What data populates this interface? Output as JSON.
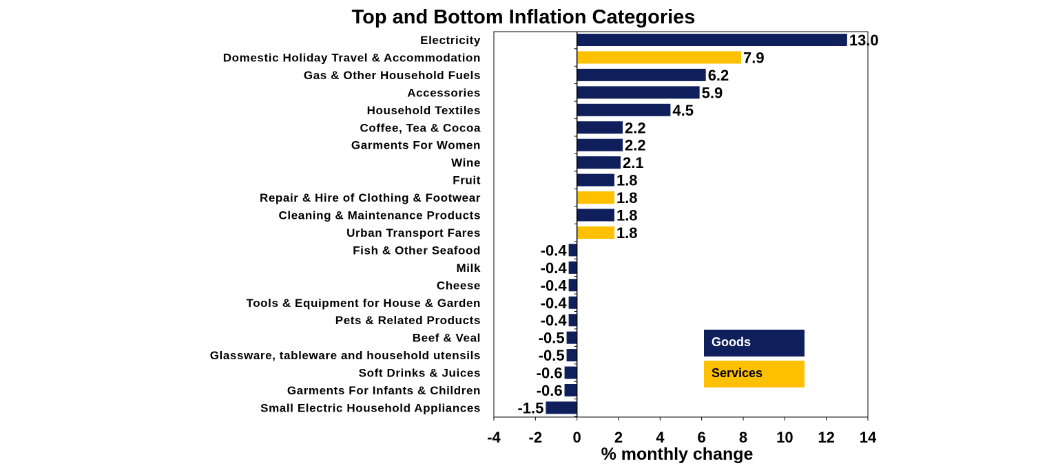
{
  "chart_data": {
    "type": "bar",
    "orientation": "horizontal",
    "title": "Top and Bottom Inflation Categories",
    "xlabel": "% monthly change",
    "ylabel": "",
    "xlim": [
      -4,
      14
    ],
    "xticks": [
      -4,
      -2,
      0,
      2,
      4,
      6,
      8,
      10,
      12,
      14
    ],
    "grid": false,
    "legend_position": "bottom-right",
    "series_colors": {
      "Goods": "#0f1f5c",
      "Services": "#ffc000"
    },
    "legend": [
      {
        "name": "Goods",
        "color": "#0f1f5c",
        "text_color": "#ffffff"
      },
      {
        "name": "Services",
        "color": "#ffc000",
        "text_color": "#000000"
      }
    ],
    "bars": [
      {
        "category": "Electricity",
        "value": 13.0,
        "label": "13.0",
        "series": "Goods"
      },
      {
        "category": "Domestic Holiday Travel & Accommodation",
        "value": 7.9,
        "label": "7.9",
        "series": "Services"
      },
      {
        "category": "Gas & Other Household Fuels",
        "value": 6.2,
        "label": "6.2",
        "series": "Goods"
      },
      {
        "category": "Accessories",
        "value": 5.9,
        "label": "5.9",
        "series": "Goods"
      },
      {
        "category": "Household Textiles",
        "value": 4.5,
        "label": "4.5",
        "series": "Goods"
      },
      {
        "category": "Coffee, Tea & Cocoa",
        "value": 2.2,
        "label": "2.2",
        "series": "Goods"
      },
      {
        "category": "Garments For Women",
        "value": 2.2,
        "label": "2.2",
        "series": "Goods"
      },
      {
        "category": "Wine",
        "value": 2.1,
        "label": "2.1",
        "series": "Goods"
      },
      {
        "category": "Fruit",
        "value": 1.8,
        "label": "1.8",
        "series": "Goods"
      },
      {
        "category": "Repair & Hire of Clothing & Footwear",
        "value": 1.8,
        "label": "1.8",
        "series": "Services"
      },
      {
        "category": "Cleaning & Maintenance Products",
        "value": 1.8,
        "label": "1.8",
        "series": "Goods"
      },
      {
        "category": "Urban Transport Fares",
        "value": 1.8,
        "label": "1.8",
        "series": "Services"
      },
      {
        "category": "Fish & Other Seafood",
        "value": -0.4,
        "label": "-0.4",
        "series": "Goods"
      },
      {
        "category": "Milk",
        "value": -0.4,
        "label": "-0.4",
        "series": "Goods"
      },
      {
        "category": "Cheese",
        "value": -0.4,
        "label": "-0.4",
        "series": "Goods"
      },
      {
        "category": "Tools & Equipment for House & Garden",
        "value": -0.4,
        "label": "-0.4",
        "series": "Goods"
      },
      {
        "category": "Pets & Related Products",
        "value": -0.4,
        "label": "-0.4",
        "series": "Goods"
      },
      {
        "category": "Beef & Veal",
        "value": -0.5,
        "label": "-0.5",
        "series": "Goods"
      },
      {
        "category": "Glassware, tableware and household utensils",
        "value": -0.5,
        "label": "-0.5",
        "series": "Goods"
      },
      {
        "category": "Soft Drinks & Juices",
        "value": -0.6,
        "label": "-0.6",
        "series": "Goods"
      },
      {
        "category": "Garments For Infants & Children",
        "value": -0.6,
        "label": "-0.6",
        "series": "Goods"
      },
      {
        "category": "Small Electric Household Appliances",
        "value": -1.5,
        "label": "-1.5",
        "series": "Goods"
      }
    ]
  }
}
